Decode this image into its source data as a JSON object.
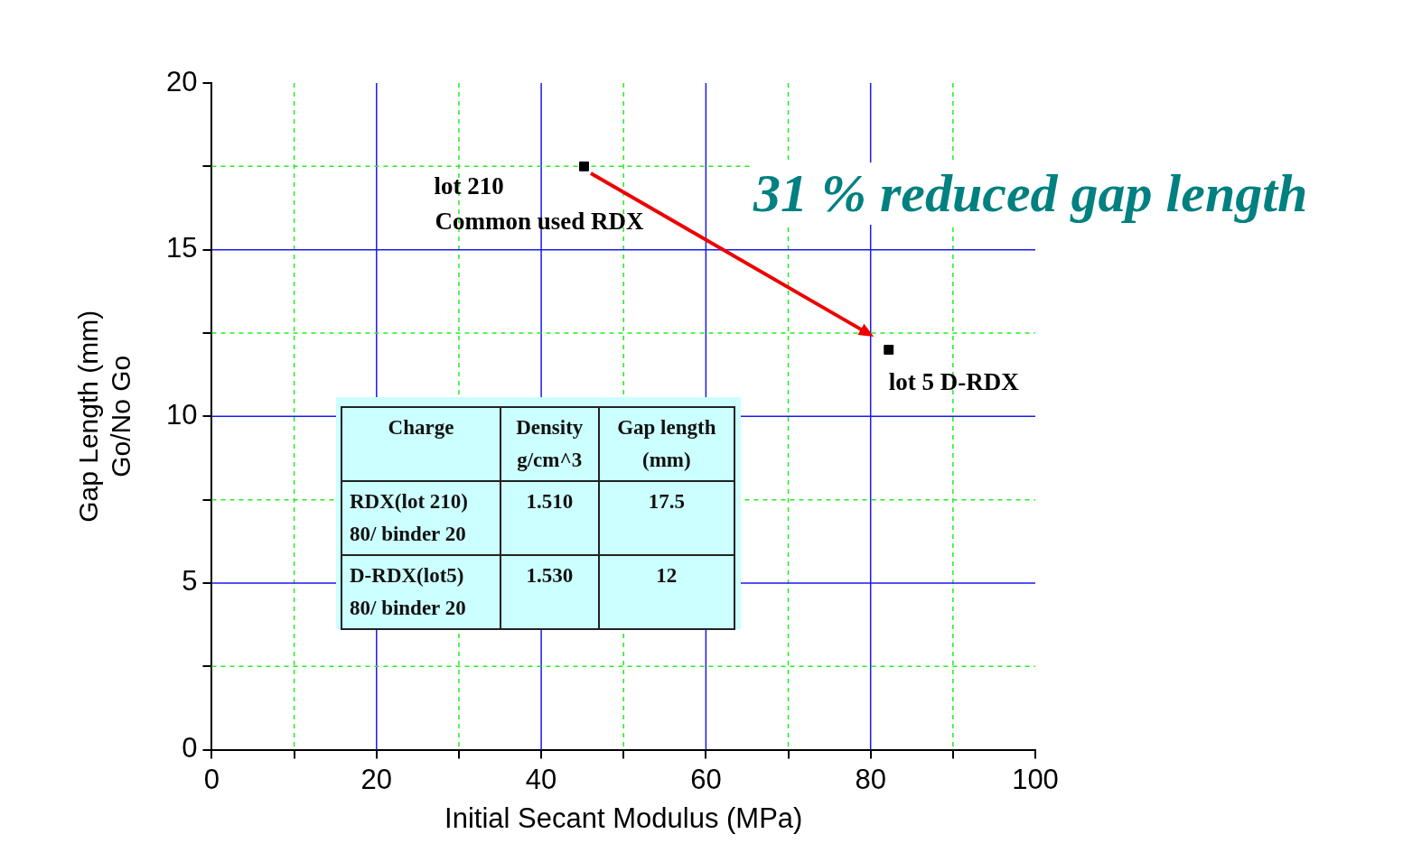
{
  "chart_data": {
    "type": "scatter",
    "xlabel": "Initial Secant Modulus (MPa)",
    "ylabel": "Gap Length (mm)\nGo/No Go",
    "series": [
      {
        "color": "#000000",
        "x": [
          45.2,
          82.2
        ],
        "values": [
          17.5,
          12.0
        ]
      }
    ],
    "marker": "square",
    "xlim": [
      0,
      100
    ],
    "xticks": [
      0,
      {
        "value": 10,
        "label": null
      },
      20,
      {
        "value": 30,
        "label": null
      },
      40,
      {
        "value": 50,
        "label": null
      },
      60,
      {
        "value": 70,
        "label": null
      },
      80,
      {
        "value": 90,
        "label": null
      },
      100
    ],
    "ylim": [
      0,
      20
    ],
    "yticks": [
      0,
      {
        "value": 2.5,
        "label": null
      },
      5,
      {
        "value": 7.5,
        "label": null
      },
      10,
      {
        "value": 12.5,
        "label": null
      },
      15,
      {
        "value": 17.5,
        "label": null
      },
      20
    ],
    "grid": true,
    "legend": false,
    "annotations": [
      "31 % reduced gap length",
      {
        "text": "lot 210\nCommon used RDX",
        "x": 45.2,
        "y": 17.5
      },
      {
        "text": "lot 5 D-RDX",
        "x": 82.2,
        "y": 12.0
      },
      "Charge",
      "Density\ng/cm^3",
      "Gap length\n(mm)",
      "RDX(lot 210)\n80/ binder 20",
      "1.510",
      "17.5",
      "D-RDX(lot5)\n80/ binder 20",
      "1.530",
      "12"
    ]
  }
}
